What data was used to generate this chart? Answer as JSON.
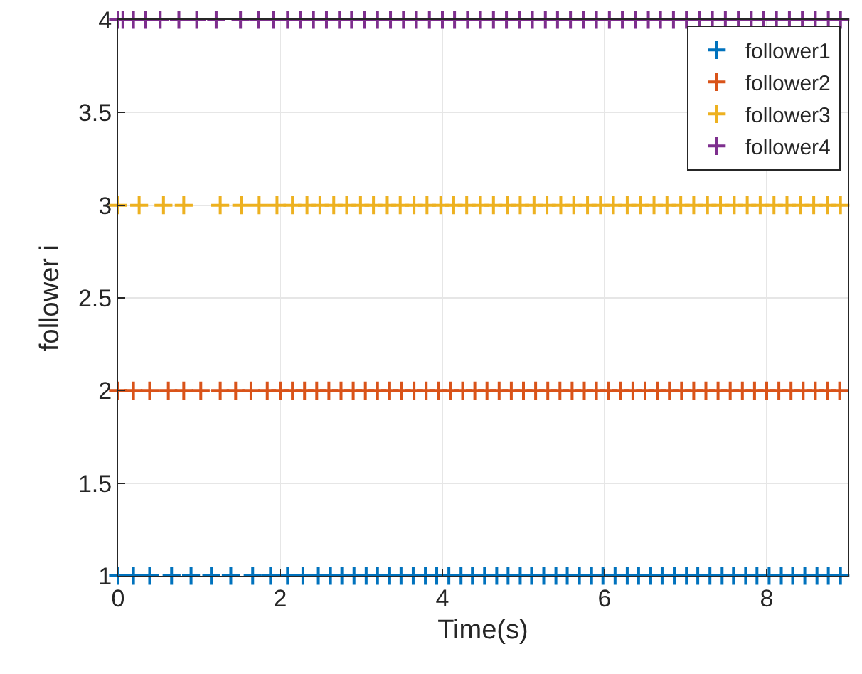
{
  "chart_data": {
    "type": "scatter",
    "xlabel": "Time(s)",
    "ylabel": "follower i",
    "xlim": [
      0,
      9
    ],
    "xticks": [
      0,
      2,
      4,
      6,
      8
    ],
    "ylim": [
      1,
      4
    ],
    "yticks": [
      1,
      1.5,
      2,
      2.5,
      3,
      3.5,
      4
    ],
    "grid": true,
    "legend": "top right",
    "marker": "cross",
    "series": [
      {
        "name": "follower1",
        "color": "#0072bd",
        "x": [
          0,
          0.02,
          0.04,
          0.19,
          0.39,
          0.66,
          0.9,
          1.15,
          1.39,
          1.66,
          1.88,
          2.09,
          2.28,
          2.47,
          2.62,
          2.76,
          2.91,
          3.06,
          3.2,
          3.35,
          3.49,
          3.64,
          3.79,
          3.93,
          4.08,
          4.23,
          4.37,
          4.52,
          4.67,
          4.81,
          4.96,
          5.1,
          5.25,
          5.4,
          5.54,
          5.69,
          5.84,
          5.98,
          6.13,
          6.28,
          6.42,
          6.57,
          6.71,
          6.86,
          7.01,
          7.15,
          7.3,
          7.45,
          7.59,
          7.74,
          7.88,
          8.03,
          8.18,
          8.32,
          8.47,
          8.62,
          8.76,
          8.91
        ],
        "values": [
          1,
          null,
          null,
          1,
          1,
          1,
          1,
          1,
          1,
          1,
          1,
          1,
          1,
          1,
          1,
          1,
          1,
          1,
          1,
          1,
          1,
          1,
          1,
          1,
          1,
          1,
          1,
          1,
          1,
          1,
          1,
          1,
          1,
          1,
          1,
          1,
          1,
          1,
          1,
          1,
          1,
          1,
          1,
          1,
          1,
          1,
          1,
          1,
          1,
          1,
          1,
          1,
          1,
          1,
          1,
          1,
          1,
          1
        ]
      },
      {
        "name": "follower2",
        "color": "#d95319",
        "x": [
          0,
          0.19,
          0.39,
          0.62,
          0.81,
          1.02,
          1.26,
          1.45,
          1.64,
          1.84,
          2.0,
          2.15,
          2.3,
          2.45,
          2.6,
          2.75,
          2.9,
          3.05,
          3.2,
          3.35,
          3.5,
          3.65,
          3.8,
          3.95,
          4.1,
          4.25,
          4.4,
          4.55,
          4.7,
          4.85,
          5.0,
          5.15,
          5.3,
          5.45,
          5.6,
          5.75,
          5.9,
          6.05,
          6.2,
          6.35,
          6.5,
          6.65,
          6.8,
          6.95,
          7.1,
          7.25,
          7.4,
          7.55,
          7.7,
          7.85,
          8.0,
          8.15,
          8.3,
          8.45,
          8.6,
          8.75,
          8.9
        ],
        "values": [
          2,
          2,
          2,
          2,
          2,
          2,
          2,
          2,
          2,
          2,
          2,
          2,
          2,
          2,
          2,
          2,
          2,
          2,
          2,
          2,
          2,
          2,
          2,
          2,
          2,
          2,
          2,
          2,
          2,
          2,
          2,
          2,
          2,
          2,
          2,
          2,
          2,
          2,
          2,
          2,
          2,
          2,
          2,
          2,
          2,
          2,
          2,
          2,
          2,
          2,
          2,
          2,
          2,
          2,
          2,
          2,
          2
        ]
      },
      {
        "name": "follower3",
        "color": "#edb120",
        "x": [
          0,
          0.26,
          0.56,
          0.81,
          1.26,
          1.52,
          1.74,
          1.96,
          2.15,
          2.33,
          2.49,
          2.66,
          2.82,
          2.99,
          3.15,
          3.32,
          3.48,
          3.65,
          3.81,
          3.98,
          4.14,
          4.3,
          4.47,
          4.63,
          4.8,
          4.96,
          5.13,
          5.29,
          5.46,
          5.62,
          5.79,
          5.95,
          6.11,
          6.28,
          6.44,
          6.61,
          6.77,
          6.94,
          7.1,
          7.27,
          7.43,
          7.6,
          7.76,
          7.92,
          8.09,
          8.25,
          8.42,
          8.58,
          8.75,
          8.91
        ],
        "values": [
          3,
          3,
          3,
          3,
          3,
          3,
          3,
          3,
          3,
          3,
          3,
          3,
          3,
          3,
          3,
          3,
          3,
          3,
          3,
          3,
          3,
          3,
          3,
          3,
          3,
          3,
          3,
          3,
          3,
          3,
          3,
          3,
          3,
          3,
          3,
          3,
          3,
          3,
          3,
          3,
          3,
          3,
          3,
          3,
          3,
          3,
          3,
          3,
          3,
          3
        ]
      },
      {
        "name": "follower4",
        "color": "#7e2f8e",
        "x": [
          0,
          0.06,
          0.19,
          0.34,
          0.52,
          0.75,
          0.97,
          1.21,
          1.51,
          1.73,
          1.92,
          2.09,
          2.25,
          2.41,
          2.57,
          2.73,
          2.88,
          3.04,
          3.2,
          3.36,
          3.52,
          3.68,
          3.84,
          4.0,
          4.15,
          4.31,
          4.47,
          4.63,
          4.79,
          4.95,
          5.11,
          5.27,
          5.42,
          5.58,
          5.74,
          5.9,
          6.06,
          6.22,
          6.38,
          6.54,
          6.69,
          6.85,
          7.01,
          7.17,
          7.33,
          7.49,
          7.65,
          7.81,
          7.96,
          8.12,
          8.28,
          8.44,
          8.6,
          8.76,
          8.91
        ],
        "values": [
          4,
          4,
          4,
          4,
          4,
          4,
          4,
          4,
          4,
          4,
          4,
          4,
          4,
          4,
          4,
          4,
          4,
          4,
          4,
          4,
          4,
          4,
          4,
          4,
          4,
          4,
          4,
          4,
          4,
          4,
          4,
          4,
          4,
          4,
          4,
          4,
          4,
          4,
          4,
          4,
          4,
          4,
          4,
          4,
          4,
          4,
          4,
          4,
          4,
          4,
          4,
          4,
          4,
          4,
          4
        ]
      }
    ]
  }
}
